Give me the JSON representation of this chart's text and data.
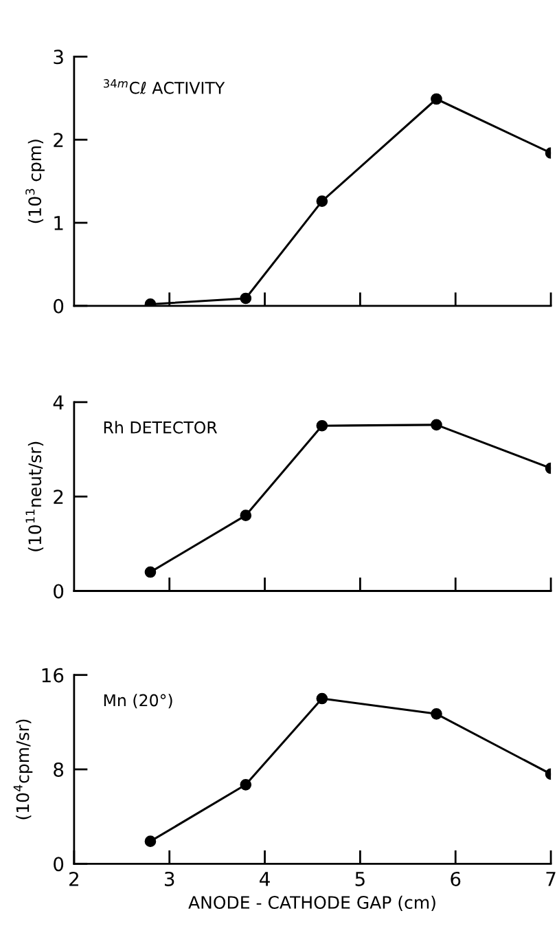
{
  "chart_data": [
    {
      "type": "line",
      "annotations": [
        "$^{34m}$Cℓ ACTIVITY"
      ],
      "ylabel": "(10$^{3}$ cpm)",
      "x": [
        2.8,
        3.8,
        4.6,
        5.8,
        7
      ],
      "xlim": [
        2,
        7
      ],
      "xticks": [
        3,
        4,
        5,
        6,
        7
      ],
      "ylim": [
        0,
        3
      ],
      "yticks": [
        0,
        1,
        2,
        3
      ],
      "tick_labels": "y",
      "marker": "circle",
      "grid": false,
      "legend": false,
      "series": [
        {
          "color": "#000000",
          "values": [
            0.02,
            0.09,
            1.26,
            2.49,
            1.84
          ]
        }
      ]
    },
    {
      "type": "line",
      "annotations": [
        "Rh DETECTOR"
      ],
      "ylabel": "(10$^{11}$neut/sr)",
      "x": [
        2.8,
        3.8,
        4.6,
        5.8,
        7
      ],
      "xlim": [
        2,
        7
      ],
      "xticks": [
        3,
        4,
        5,
        6,
        7
      ],
      "ylim": [
        0,
        4
      ],
      "yticks": [
        0,
        2,
        4
      ],
      "tick_labels": "y",
      "marker": "circle",
      "grid": false,
      "legend": false,
      "series": [
        {
          "color": "#000000",
          "values": [
            0.4,
            1.6,
            3.5,
            3.52,
            2.6
          ]
        }
      ]
    },
    {
      "type": "line",
      "annotations": [
        "Mn (20°)"
      ],
      "ylabel": "(10$^{4}$cpm/sr)",
      "xlabel": "ANODE - CATHODE GAP (cm)",
      "x": [
        2.8,
        3.8,
        4.6,
        5.8,
        7
      ],
      "xlim": [
        2,
        7
      ],
      "xticks": [
        2,
        3,
        4,
        5,
        6,
        7
      ],
      "ylim": [
        0,
        16
      ],
      "yticks": [
        0,
        8,
        16
      ],
      "marker": "circle",
      "grid": false,
      "legend": false,
      "series": [
        {
          "color": "#000000",
          "values": [
            1.9,
            6.7,
            14.0,
            12.7,
            7.6
          ]
        }
      ]
    }
  ]
}
